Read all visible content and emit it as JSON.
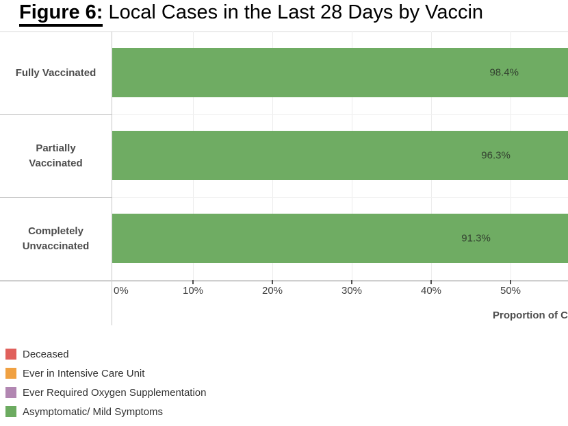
{
  "title": {
    "prefix": "Figure 6:",
    "rest": " Local Cases in the Last 28 Days by Vaccin"
  },
  "chart_data": {
    "type": "bar",
    "orientation": "horizontal",
    "title": "Figure 6: Local Cases in the Last 28 Days by Vaccin…(clipped)",
    "categories": [
      "Fully Vaccinated",
      "Partially Vaccinated",
      "Completely Unvaccinated"
    ],
    "category_lines": [
      [
        "Fully Vaccinated"
      ],
      [
        "Partially",
        "Vaccinated"
      ],
      [
        "Completely",
        "Unvaccinated"
      ]
    ],
    "values": [
      98.4,
      96.3,
      91.3
    ],
    "value_labels": [
      "98.4%",
      "96.3%",
      "91.3%"
    ],
    "series_shown": "Asymptomatic/ Mild Symptoms",
    "bar_color": "#6fac63",
    "xlabel": "Proportion of C",
    "x_ticks": [
      {
        "pct": 0,
        "label": "0%"
      },
      {
        "pct": 10,
        "label": "10%"
      },
      {
        "pct": 20,
        "label": "20%"
      },
      {
        "pct": 30,
        "label": "30%"
      },
      {
        "pct": 40,
        "label": "40%"
      },
      {
        "pct": 50,
        "label": "50%"
      }
    ],
    "xlim_visible": [
      0,
      57
    ],
    "grid": true,
    "legend_position": "bottom-left",
    "legend": [
      {
        "label": "Deceased",
        "color": "#e0605c"
      },
      {
        "label": "Ever in Intensive Care Unit",
        "color": "#f0a142"
      },
      {
        "label": "Ever Required Oxygen Supplementation",
        "color": "#b287b2"
      },
      {
        "label": "Asymptomatic/ Mild Symptoms",
        "color": "#6cab60"
      }
    ]
  }
}
